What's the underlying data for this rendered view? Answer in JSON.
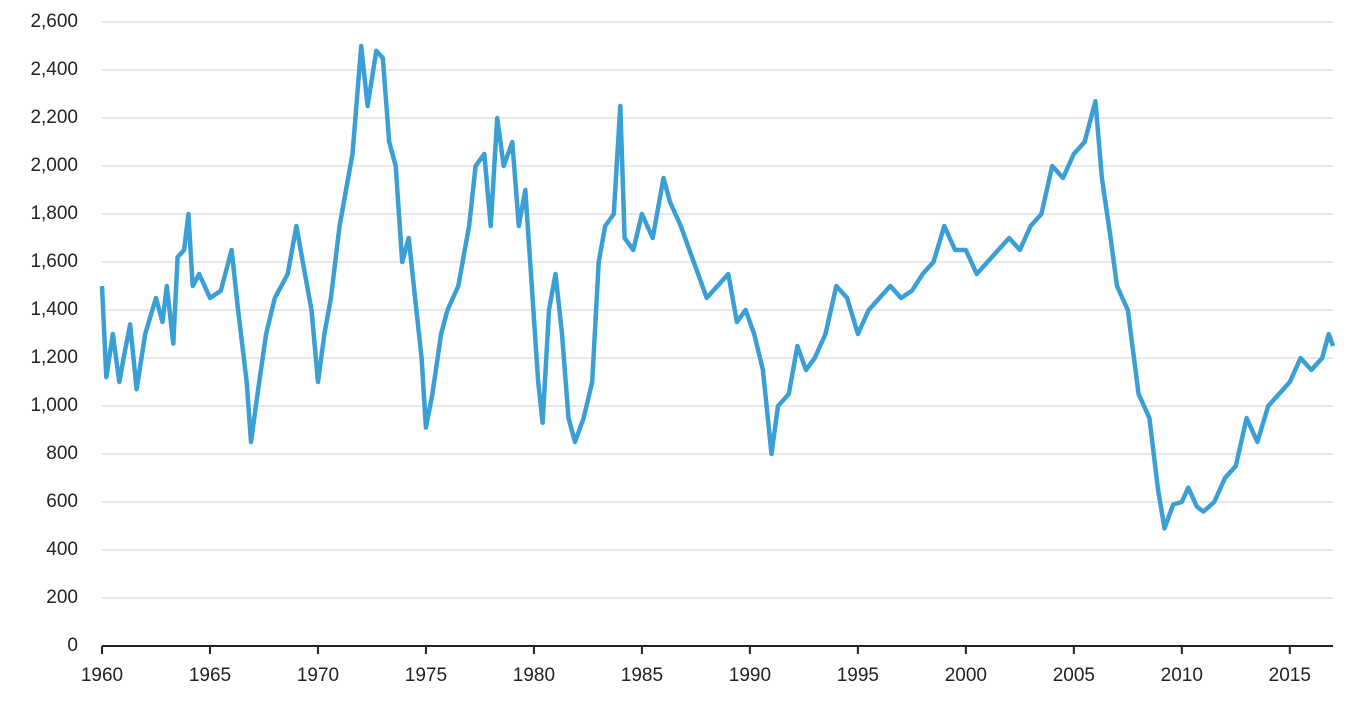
{
  "chart_data": {
    "type": "line",
    "x": [
      1960.0,
      1960.2,
      1960.5,
      1960.8,
      1961.0,
      1961.3,
      1961.6,
      1962.0,
      1962.5,
      1962.8,
      1963.0,
      1963.3,
      1963.5,
      1963.8,
      1964.0,
      1964.2,
      1964.5,
      1965.0,
      1965.5,
      1966.0,
      1966.3,
      1966.7,
      1966.9,
      1967.2,
      1967.6,
      1968.0,
      1968.3,
      1968.6,
      1969.0,
      1969.3,
      1969.7,
      1970.0,
      1970.3,
      1970.6,
      1971.0,
      1971.3,
      1971.6,
      1972.0,
      1972.3,
      1972.7,
      1973.0,
      1973.3,
      1973.6,
      1973.9,
      1974.2,
      1974.5,
      1974.8,
      1975.0,
      1975.3,
      1975.7,
      1976.0,
      1976.5,
      1977.0,
      1977.3,
      1977.7,
      1978.0,
      1978.3,
      1978.6,
      1979.0,
      1979.3,
      1979.6,
      1979.9,
      1980.2,
      1980.4,
      1980.7,
      1981.0,
      1981.3,
      1981.6,
      1981.9,
      1982.3,
      1982.7,
      1983.0,
      1983.3,
      1983.7,
      1984.0,
      1984.2,
      1984.6,
      1985.0,
      1985.5,
      1986.0,
      1986.3,
      1986.8,
      1987.2,
      1987.6,
      1988.0,
      1988.5,
      1989.0,
      1989.4,
      1989.8,
      1990.2,
      1990.6,
      1991.0,
      1991.3,
      1991.8,
      1992.2,
      1992.6,
      1993.0,
      1993.5,
      1994.0,
      1994.5,
      1995.0,
      1995.5,
      1996.0,
      1996.5,
      1997.0,
      1997.5,
      1998.0,
      1998.5,
      1999.0,
      1999.5,
      2000.0,
      2000.5,
      2001.0,
      2001.5,
      2002.0,
      2002.5,
      2003.0,
      2003.5,
      2004.0,
      2004.5,
      2005.0,
      2005.5,
      2006.0,
      2006.3,
      2006.7,
      2007.0,
      2007.5,
      2008.0,
      2008.5,
      2008.9,
      2009.2,
      2009.6,
      2010.0,
      2010.3,
      2010.7,
      2011.0,
      2011.5,
      2012.0,
      2012.5,
      2013.0,
      2013.5,
      2014.0,
      2014.5,
      2015.0,
      2015.5,
      2016.0,
      2016.5,
      2016.8,
      2017.0
    ],
    "values": [
      1500,
      1120,
      1300,
      1100,
      1200,
      1340,
      1070,
      1300,
      1450,
      1350,
      1500,
      1260,
      1620,
      1650,
      1800,
      1500,
      1550,
      1450,
      1480,
      1650,
      1400,
      1100,
      850,
      1050,
      1300,
      1450,
      1500,
      1550,
      1750,
      1600,
      1400,
      1100,
      1300,
      1450,
      1750,
      1900,
      2050,
      2500,
      2250,
      2480,
      2450,
      2100,
      2000,
      1600,
      1700,
      1450,
      1200,
      910,
      1050,
      1300,
      1400,
      1500,
      1750,
      2000,
      2050,
      1750,
      2200,
      2000,
      2100,
      1750,
      1900,
      1500,
      1100,
      930,
      1400,
      1550,
      1300,
      950,
      850,
      950,
      1100,
      1600,
      1750,
      1800,
      2250,
      1700,
      1650,
      1800,
      1700,
      1950,
      1850,
      1750,
      1650,
      1550,
      1450,
      1500,
      1550,
      1350,
      1400,
      1300,
      1150,
      800,
      1000,
      1050,
      1250,
      1150,
      1200,
      1300,
      1500,
      1450,
      1300,
      1400,
      1450,
      1500,
      1450,
      1480,
      1550,
      1600,
      1750,
      1650,
      1650,
      1550,
      1600,
      1650,
      1700,
      1650,
      1750,
      1800,
      2000,
      1950,
      2050,
      2100,
      2270,
      1950,
      1700,
      1500,
      1400,
      1050,
      950,
      650,
      490,
      590,
      600,
      660,
      580,
      560,
      600,
      700,
      750,
      950,
      850,
      1000,
      1050,
      1100,
      1200,
      1150,
      1200,
      1300,
      1250
    ],
    "color": "#3a9fd5",
    "xlim": [
      1960,
      2017
    ],
    "xticks": [
      1960,
      1965,
      1970,
      1975,
      1980,
      1985,
      1990,
      1995,
      2000,
      2005,
      2010,
      2015
    ],
    "ylim": [
      0,
      2600
    ],
    "yticks": [
      0,
      200,
      400,
      600,
      800,
      {
        "value": 1000,
        "label": "1,000"
      },
      {
        "value": 1200,
        "label": "1,200"
      },
      {
        "value": 1400,
        "label": "1,400"
      },
      {
        "value": 1600,
        "label": "1,600"
      },
      {
        "value": 1800,
        "label": "1,800"
      },
      {
        "value": 2000,
        "label": "2,000"
      },
      {
        "value": 2200,
        "label": "2,200"
      },
      {
        "value": 2400,
        "label": "2,400"
      },
      {
        "value": 2600,
        "label": "2,600"
      }
    ],
    "grid": true
  }
}
